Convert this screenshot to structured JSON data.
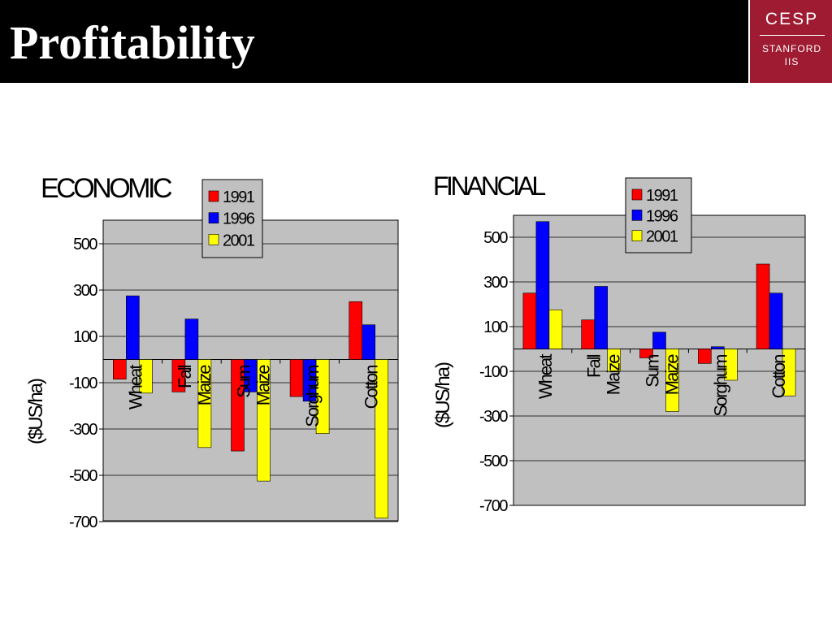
{
  "header": {
    "title": "Profitability"
  },
  "logo": {
    "main": "CESP",
    "sub1": "STANFORD",
    "sub2": "IIS"
  },
  "colors": {
    "background": "#000000",
    "plot_area": "#c0c0c0",
    "logo": "#9e1b32"
  },
  "chart_data": [
    {
      "type": "bar",
      "title": "ECONOMIC",
      "ylabel": "($US/ha)",
      "categories": [
        "Wheat",
        "Fall Maize",
        "Sum Maize",
        "Sorghum",
        "Cotton"
      ],
      "series": [
        {
          "name": "1991",
          "color": "#ff0000",
          "values": [
            -85,
            -140,
            -395,
            -160,
            250
          ]
        },
        {
          "name": "1996",
          "color": "#0000ff",
          "values": [
            275,
            175,
            -140,
            -180,
            150
          ]
        },
        {
          "name": "2001",
          "color": "#ffff00",
          "values": [
            -145,
            -380,
            -525,
            -320,
            -685
          ]
        }
      ],
      "yticks": [
        500,
        300,
        100,
        -100,
        -300,
        -500,
        -700
      ],
      "ylim": [
        -700,
        600
      ],
      "grid": true,
      "legend": "top-right"
    },
    {
      "type": "bar",
      "title": "FINANCIAL",
      "ylabel": "($US/ha)",
      "categories": [
        "Wheat",
        "Fall Maize",
        "Sum Maize",
        "Sorghum",
        "Cotton"
      ],
      "series": [
        {
          "name": "1991",
          "color": "#ff0000",
          "values": [
            250,
            130,
            -40,
            -65,
            380
          ]
        },
        {
          "name": "1996",
          "color": "#0000ff",
          "values": [
            570,
            280,
            75,
            10,
            250
          ]
        },
        {
          "name": "2001",
          "color": "#ffff00",
          "values": [
            175,
            -100,
            -280,
            -140,
            -210
          ]
        }
      ],
      "yticks": [
        500,
        300,
        100,
        -100,
        -300,
        -500,
        -700
      ],
      "ylim": [
        -700,
        600
      ],
      "grid": true,
      "legend": "top-right"
    }
  ]
}
